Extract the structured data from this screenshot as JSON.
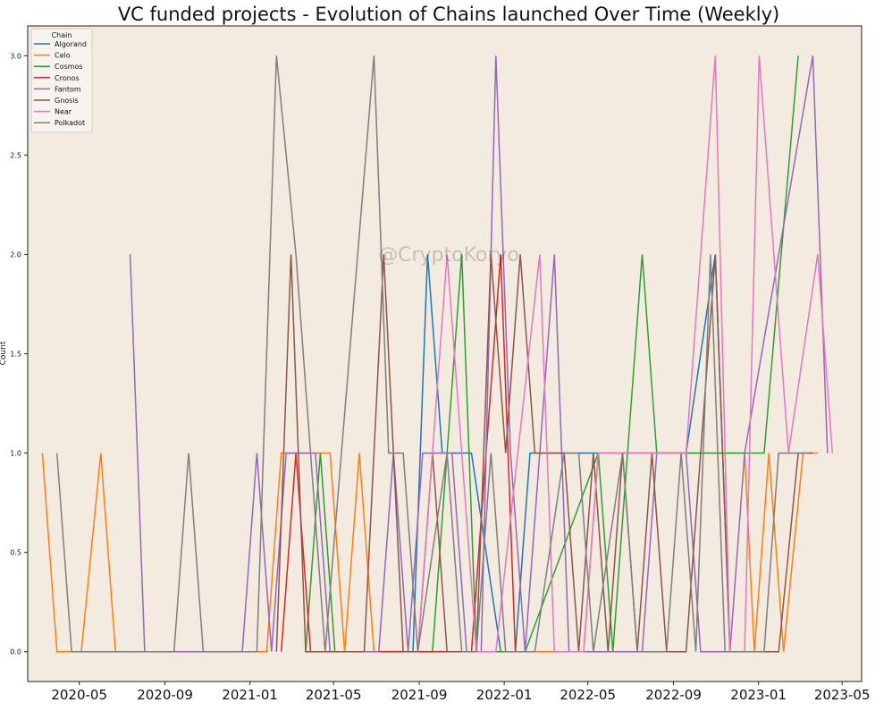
{
  "chart_data": {
    "type": "line",
    "title": "VC funded projects - Evolution of Chains launched Over Time (Weekly)",
    "xlabel": "",
    "ylabel": "Count",
    "watermark": "@CryptoKoryo",
    "background": "#f3eae0",
    "grid": false,
    "xlim": [
      "2020-02-17",
      "2023-05-29"
    ],
    "ylim": [
      -0.15,
      3.15
    ],
    "x_ticks": [
      "2020-05",
      "2020-09",
      "2021-01",
      "2021-05",
      "2021-09",
      "2022-01",
      "2022-05",
      "2022-09",
      "2023-01",
      "2023-05"
    ],
    "y_ticks": [
      0.0,
      0.5,
      1.0,
      1.5,
      2.0,
      2.5,
      3.0
    ],
    "legend": {
      "title": "Chain",
      "position": "top-left"
    },
    "series": [
      {
        "name": "Algorand",
        "color": "#1f77b4",
        "points": [
          [
            "2021-08-23",
            0
          ],
          [
            "2021-09-13",
            2
          ],
          [
            "2021-10-04",
            1
          ],
          [
            "2021-11-15",
            1
          ],
          [
            "2021-12-27",
            0
          ],
          [
            "2022-01-17",
            0
          ],
          [
            "2022-02-07",
            1
          ],
          [
            "2022-03-28",
            1
          ],
          [
            "2022-08-08",
            1
          ],
          [
            "2022-09-19",
            1
          ],
          [
            "2022-10-31",
            2
          ],
          [
            "2022-11-21",
            0
          ],
          [
            "2022-12-12",
            0
          ]
        ]
      },
      {
        "name": "Celo",
        "color": "#ff7f0e",
        "points": [
          [
            "2020-03-09",
            1
          ],
          [
            "2020-03-30",
            0
          ],
          [
            "2020-05-04",
            0
          ],
          [
            "2020-06-01",
            1
          ],
          [
            "2020-06-22",
            0
          ],
          [
            "2021-01-25",
            0
          ],
          [
            "2021-02-15",
            1
          ],
          [
            "2021-04-26",
            1
          ],
          [
            "2021-05-17",
            0
          ],
          [
            "2021-06-07",
            1
          ],
          [
            "2021-06-28",
            0
          ],
          [
            "2022-04-25",
            0
          ],
          [
            "2022-05-16",
            1
          ],
          [
            "2022-12-12",
            1
          ],
          [
            "2022-12-26",
            0
          ],
          [
            "2023-01-16",
            1
          ],
          [
            "2023-02-06",
            0
          ],
          [
            "2023-03-06",
            1
          ],
          [
            "2023-03-27",
            1
          ]
        ]
      },
      {
        "name": "Cosmos",
        "color": "#2ca02c",
        "points": [
          [
            "2021-03-22",
            0
          ],
          [
            "2021-04-12",
            1
          ],
          [
            "2021-05-03",
            0
          ],
          [
            "2021-08-30",
            0
          ],
          [
            "2021-09-20",
            0
          ],
          [
            "2021-10-11",
            1
          ],
          [
            "2021-11-01",
            2
          ],
          [
            "2021-11-22",
            0
          ],
          [
            "2022-01-31",
            0
          ],
          [
            "2022-05-16",
            1
          ],
          [
            "2022-06-06",
            0
          ],
          [
            "2022-07-18",
            2
          ],
          [
            "2022-08-08",
            1
          ],
          [
            "2022-11-28",
            1
          ],
          [
            "2023-01-09",
            1
          ],
          [
            "2023-02-27",
            3
          ]
        ]
      },
      {
        "name": "Cronos",
        "color": "#d62728",
        "points": [
          [
            "2021-02-15",
            0
          ],
          [
            "2021-03-08",
            1
          ],
          [
            "2021-03-29",
            0
          ],
          [
            "2021-10-25",
            0
          ],
          [
            "2021-11-15",
            0
          ],
          [
            "2021-12-27",
            2
          ],
          [
            "2022-01-17",
            0
          ]
        ]
      },
      {
        "name": "Fantom",
        "color": "#9467bd",
        "points": [
          [
            "2020-07-13",
            2
          ],
          [
            "2020-08-03",
            0
          ],
          [
            "2020-09-14",
            0
          ],
          [
            "2020-12-21",
            0
          ],
          [
            "2021-01-11",
            1
          ],
          [
            "2021-02-01",
            0
          ],
          [
            "2021-02-22",
            1
          ],
          [
            "2021-04-05",
            1
          ],
          [
            "2021-04-26",
            0
          ],
          [
            "2021-07-05",
            0
          ],
          [
            "2021-07-26",
            1
          ],
          [
            "2021-08-16",
            0
          ],
          [
            "2021-09-06",
            1
          ],
          [
            "2021-10-18",
            1
          ],
          [
            "2021-11-08",
            0
          ],
          [
            "2021-11-29",
            0
          ],
          [
            "2021-12-20",
            3
          ],
          [
            "2022-01-10",
            1
          ],
          [
            "2022-01-31",
            0
          ],
          [
            "2022-02-21",
            1
          ],
          [
            "2022-03-14",
            2
          ],
          [
            "2022-04-04",
            0
          ],
          [
            "2022-07-18",
            0
          ],
          [
            "2022-08-08",
            1
          ],
          [
            "2022-09-19",
            1
          ],
          [
            "2022-10-10",
            0
          ],
          [
            "2022-11-21",
            0
          ],
          [
            "2022-12-12",
            1
          ],
          [
            "2023-03-20",
            3
          ],
          [
            "2023-04-10",
            1
          ]
        ]
      },
      {
        "name": "Gnosis",
        "color": "#8c564b",
        "points": [
          [
            "2021-02-08",
            0
          ],
          [
            "2021-03-01",
            2
          ],
          [
            "2021-03-22",
            0
          ],
          [
            "2021-06-14",
            0
          ],
          [
            "2021-07-12",
            2
          ],
          [
            "2021-08-09",
            0
          ],
          [
            "2021-08-30",
            0
          ],
          [
            "2021-09-20",
            1
          ],
          [
            "2021-10-11",
            0
          ],
          [
            "2021-11-22",
            0
          ],
          [
            "2021-12-13",
            2
          ],
          [
            "2022-01-03",
            1
          ],
          [
            "2022-01-24",
            2
          ],
          [
            "2022-02-14",
            1
          ],
          [
            "2022-03-28",
            1
          ],
          [
            "2022-04-18",
            0
          ],
          [
            "2022-05-09",
            1
          ],
          [
            "2022-05-30",
            0
          ],
          [
            "2022-06-20",
            1
          ],
          [
            "2022-07-11",
            0
          ],
          [
            "2022-08-01",
            1
          ],
          [
            "2022-08-22",
            0
          ],
          [
            "2022-09-19",
            0
          ],
          [
            "2022-10-10",
            1
          ],
          [
            "2022-10-31",
            2
          ],
          [
            "2022-11-21",
            0
          ],
          [
            "2023-01-30",
            0
          ],
          [
            "2023-02-27",
            1
          ],
          [
            "2023-03-20",
            1
          ]
        ]
      },
      {
        "name": "Near",
        "color": "#e377c2",
        "points": [
          [
            "2021-08-30",
            0
          ],
          [
            "2021-10-11",
            2
          ],
          [
            "2021-11-01",
            1
          ],
          [
            "2021-11-22",
            0
          ],
          [
            "2021-12-20",
            0
          ],
          [
            "2022-02-21",
            2
          ],
          [
            "2022-03-14",
            0
          ],
          [
            "2022-04-25",
            0
          ],
          [
            "2022-05-16",
            1
          ],
          [
            "2022-08-29",
            1
          ],
          [
            "2022-09-19",
            1
          ],
          [
            "2022-10-31",
            3
          ],
          [
            "2022-11-21",
            0
          ],
          [
            "2022-12-12",
            0
          ],
          [
            "2023-01-02",
            3
          ],
          [
            "2023-02-13",
            1
          ],
          [
            "2023-03-27",
            2
          ],
          [
            "2023-04-17",
            1
          ]
        ]
      },
      {
        "name": "Polkadot",
        "color": "#7f7f7f",
        "points": [
          [
            "2020-03-30",
            1
          ],
          [
            "2020-04-20",
            0
          ],
          [
            "2020-09-14",
            0
          ],
          [
            "2020-10-05",
            1
          ],
          [
            "2020-10-26",
            0
          ],
          [
            "2020-12-21",
            0
          ],
          [
            "2021-01-11",
            0
          ],
          [
            "2021-02-08",
            3
          ],
          [
            "2021-03-08",
            2
          ],
          [
            "2021-04-19",
            0
          ],
          [
            "2021-06-28",
            3
          ],
          [
            "2021-07-19",
            1
          ],
          [
            "2021-08-09",
            1
          ],
          [
            "2021-08-30",
            0
          ],
          [
            "2021-10-11",
            1
          ],
          [
            "2021-11-01",
            0
          ],
          [
            "2021-11-22",
            0
          ],
          [
            "2021-12-13",
            1
          ],
          [
            "2022-01-03",
            0
          ],
          [
            "2022-02-14",
            0
          ],
          [
            "2022-03-28",
            1
          ],
          [
            "2022-04-18",
            1
          ],
          [
            "2022-05-09",
            0
          ],
          [
            "2022-06-20",
            1
          ],
          [
            "2022-07-11",
            0
          ],
          [
            "2022-08-22",
            0
          ],
          [
            "2022-09-12",
            1
          ],
          [
            "2022-10-03",
            0
          ],
          [
            "2022-10-24",
            2
          ],
          [
            "2022-11-14",
            0
          ],
          [
            "2023-01-09",
            0
          ],
          [
            "2023-01-30",
            1
          ],
          [
            "2023-03-13",
            1
          ]
        ]
      }
    ]
  }
}
